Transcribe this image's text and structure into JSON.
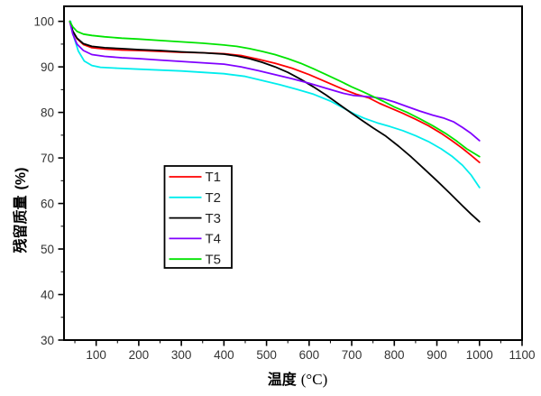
{
  "chart_data": {
    "type": "line",
    "title": "",
    "xlabel": "温度",
    "xlabel_unit": "(°C)",
    "ylabel": "残留质量",
    "ylabel_unit": "(%)",
    "xlim": [
      24.5,
      1100
    ],
    "ylim": [
      30,
      103.3
    ],
    "x_ticks": [
      100,
      200,
      300,
      400,
      500,
      600,
      700,
      800,
      900,
      1000,
      1100
    ],
    "x_minor_step": 50,
    "y_ticks": [
      30,
      40,
      50,
      60,
      70,
      80,
      90,
      100
    ],
    "y_minor_step": 5,
    "grid": false,
    "legend_position": "inside-center-left",
    "legend_items": [
      "T1",
      "T2",
      "T3",
      "T4",
      "T5"
    ],
    "series": [
      {
        "name": "T1",
        "color": "#FF0000",
        "points": [
          [
            38,
            100
          ],
          [
            45,
            97.8
          ],
          [
            55,
            96.2
          ],
          [
            70,
            94.9
          ],
          [
            90,
            94.2
          ],
          [
            120,
            93.9
          ],
          [
            160,
            93.7
          ],
          [
            200,
            93.6
          ],
          [
            250,
            93.4
          ],
          [
            300,
            93.2
          ],
          [
            350,
            93.1
          ],
          [
            400,
            92.9
          ],
          [
            440,
            92.5
          ],
          [
            480,
            91.7
          ],
          [
            520,
            90.8
          ],
          [
            560,
            89.7
          ],
          [
            600,
            88.3
          ],
          [
            640,
            86.7
          ],
          [
            680,
            85.1
          ],
          [
            710,
            84.0
          ],
          [
            740,
            83.2
          ],
          [
            765,
            82.0
          ],
          [
            790,
            81.0
          ],
          [
            820,
            79.8
          ],
          [
            850,
            78.5
          ],
          [
            880,
            77.1
          ],
          [
            910,
            75.4
          ],
          [
            935,
            73.8
          ],
          [
            960,
            72.1
          ],
          [
            980,
            70.6
          ],
          [
            1000,
            69.0
          ]
        ]
      },
      {
        "name": "T2",
        "color": "#00EDED",
        "points": [
          [
            40,
            100
          ],
          [
            48,
            96.5
          ],
          [
            58,
            93.5
          ],
          [
            72,
            91.3
          ],
          [
            90,
            90.3
          ],
          [
            110,
            89.9
          ],
          [
            150,
            89.7
          ],
          [
            200,
            89.5
          ],
          [
            250,
            89.3
          ],
          [
            300,
            89.1
          ],
          [
            350,
            88.8
          ],
          [
            400,
            88.5
          ],
          [
            450,
            87.9
          ],
          [
            490,
            87.0
          ],
          [
            530,
            86.1
          ],
          [
            570,
            85.1
          ],
          [
            610,
            84.0
          ],
          [
            650,
            82.5
          ],
          [
            680,
            81.0
          ],
          [
            705,
            79.7
          ],
          [
            730,
            78.7
          ],
          [
            760,
            77.7
          ],
          [
            790,
            76.9
          ],
          [
            820,
            76.0
          ],
          [
            850,
            74.9
          ],
          [
            880,
            73.6
          ],
          [
            910,
            72.0
          ],
          [
            935,
            70.4
          ],
          [
            960,
            68.4
          ],
          [
            980,
            66.3
          ],
          [
            1000,
            63.5
          ]
        ]
      },
      {
        "name": "T3",
        "color": "#000000",
        "points": [
          [
            38,
            100
          ],
          [
            45,
            97.9
          ],
          [
            55,
            96.3
          ],
          [
            70,
            95.1
          ],
          [
            90,
            94.5
          ],
          [
            120,
            94.2
          ],
          [
            160,
            94.0
          ],
          [
            200,
            93.8
          ],
          [
            250,
            93.6
          ],
          [
            300,
            93.3
          ],
          [
            350,
            93.1
          ],
          [
            400,
            92.8
          ],
          [
            430,
            92.4
          ],
          [
            460,
            91.8
          ],
          [
            490,
            91.0
          ],
          [
            520,
            90.0
          ],
          [
            550,
            88.8
          ],
          [
            580,
            87.3
          ],
          [
            610,
            85.6
          ],
          [
            640,
            83.8
          ],
          [
            670,
            81.8
          ],
          [
            700,
            79.8
          ],
          [
            725,
            78.2
          ],
          [
            750,
            76.6
          ],
          [
            780,
            74.8
          ],
          [
            810,
            72.6
          ],
          [
            840,
            70.2
          ],
          [
            870,
            67.6
          ],
          [
            900,
            65.0
          ],
          [
            930,
            62.3
          ],
          [
            960,
            59.5
          ],
          [
            980,
            57.7
          ],
          [
            1000,
            56.0
          ]
        ]
      },
      {
        "name": "T4",
        "color": "#8000FF",
        "points": [
          [
            38,
            100
          ],
          [
            45,
            97.2
          ],
          [
            55,
            95.0
          ],
          [
            70,
            93.6
          ],
          [
            90,
            92.7
          ],
          [
            120,
            92.3
          ],
          [
            160,
            92.0
          ],
          [
            200,
            91.8
          ],
          [
            250,
            91.5
          ],
          [
            300,
            91.2
          ],
          [
            350,
            90.9
          ],
          [
            400,
            90.6
          ],
          [
            440,
            90.0
          ],
          [
            480,
            89.2
          ],
          [
            520,
            88.3
          ],
          [
            560,
            87.4
          ],
          [
            600,
            86.4
          ],
          [
            640,
            85.3
          ],
          [
            680,
            84.2
          ],
          [
            705,
            83.7
          ],
          [
            730,
            83.5
          ],
          [
            755,
            83.3
          ],
          [
            775,
            83.0
          ],
          [
            800,
            82.3
          ],
          [
            830,
            81.3
          ],
          [
            860,
            80.3
          ],
          [
            890,
            79.4
          ],
          [
            915,
            78.8
          ],
          [
            940,
            77.9
          ],
          [
            960,
            76.7
          ],
          [
            980,
            75.4
          ],
          [
            1000,
            73.8
          ]
        ]
      },
      {
        "name": "T5",
        "color": "#00E400",
        "points": [
          [
            38,
            100
          ],
          [
            45,
            98.8
          ],
          [
            55,
            97.8
          ],
          [
            70,
            97.2
          ],
          [
            90,
            96.9
          ],
          [
            120,
            96.6
          ],
          [
            160,
            96.3
          ],
          [
            200,
            96.1
          ],
          [
            250,
            95.8
          ],
          [
            300,
            95.5
          ],
          [
            350,
            95.2
          ],
          [
            400,
            94.8
          ],
          [
            430,
            94.5
          ],
          [
            460,
            94.0
          ],
          [
            490,
            93.4
          ],
          [
            520,
            92.7
          ],
          [
            550,
            91.8
          ],
          [
            580,
            90.8
          ],
          [
            610,
            89.6
          ],
          [
            640,
            88.3
          ],
          [
            670,
            87.0
          ],
          [
            700,
            85.6
          ],
          [
            725,
            84.6
          ],
          [
            750,
            83.5
          ],
          [
            775,
            82.4
          ],
          [
            800,
            81.2
          ],
          [
            830,
            80.0
          ],
          [
            860,
            78.6
          ],
          [
            890,
            77.1
          ],
          [
            920,
            75.4
          ],
          [
            945,
            73.8
          ],
          [
            970,
            72.0
          ],
          [
            1000,
            70.3
          ]
        ]
      }
    ]
  }
}
